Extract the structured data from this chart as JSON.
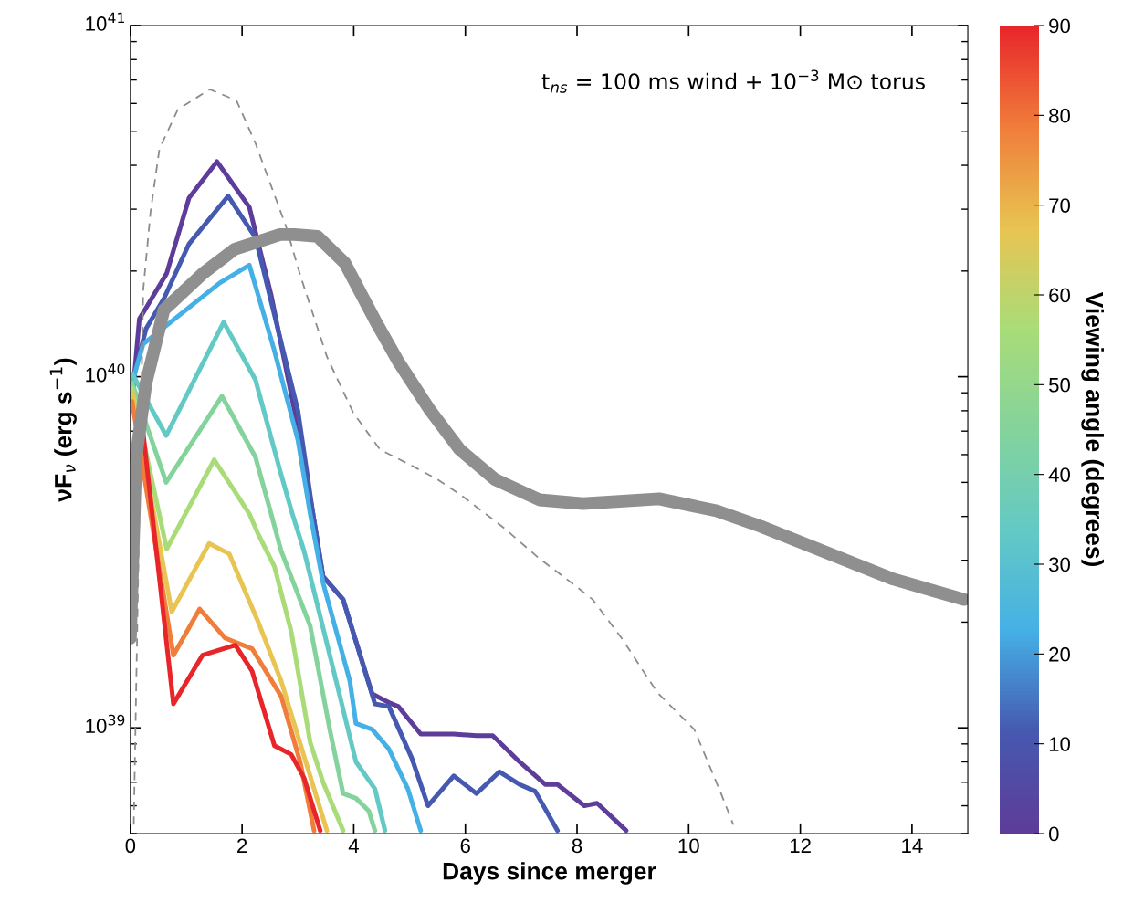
{
  "chart_data": {
    "type": "line",
    "xlabel": "Days since merger",
    "ylabel": "νF$_{ν}$ (erg s$^{−1}$)",
    "clabel": "Viewing angle (degrees)",
    "annotations": [
      "t$_{ns}$ = 100 ms wind + 10$^{−3}$ M⊙ torus"
    ],
    "log": "y",
    "grid": false,
    "legend": false,
    "line_style": "solid",
    "xlim": [
      0,
      15
    ],
    "xticks": [
      0,
      2,
      4,
      6,
      8,
      10,
      12,
      14
    ],
    "ylim": [
      5e+38,
      1e+41
    ],
    "yticks": [
      {
        "value": 1e+39,
        "label": "10$^{39}$"
      },
      {
        "value": 1e+40,
        "label": "10$^{40}$"
      },
      {
        "value": 1e+41,
        "label": "10$^{41}$"
      }
    ],
    "clim": [
      0,
      90
    ],
    "cticks": [
      0,
      10,
      20,
      30,
      40,
      50,
      60,
      70,
      80,
      90
    ],
    "series": [
      {
        "color": "#5e3c99",
        "x": [
          0.03,
          0.16,
          0.28,
          0.65,
          1.05,
          1.55,
          2.13,
          2.52,
          2.94,
          3.27,
          3.45,
          3.81,
          4.33,
          4.63,
          4.8,
          5.2,
          5.79,
          6.2,
          6.49,
          6.97,
          7.43,
          7.65,
          8.13,
          8.36,
          8.88
        ],
        "values": [
          8.5e+39,
          1.46e+40,
          1.57e+40,
          1.97e+40,
          3.23e+40,
          4.1e+40,
          3.04e+40,
          1.71e+40,
          8e+39,
          4.07e+39,
          2.7e+39,
          2.32e+39,
          1.25e+39,
          1.18e+39,
          1.15e+39,
          9.6e+38,
          9.6e+38,
          9.5e+38,
          9.5e+38,
          8e+38,
          6.9e+38,
          6.9e+38,
          6e+38,
          6.1e+38,
          5.1e+38
        ]
      },
      {
        "color": "#4659b0",
        "x": [
          0.03,
          0.28,
          0.6,
          1.05,
          1.75,
          2.24,
          3.0,
          3.27,
          3.45,
          3.81,
          4.38,
          4.63,
          5.04,
          5.33,
          5.79,
          6.2,
          6.61,
          6.97,
          7.25,
          7.65
        ],
        "values": [
          9.6e+39,
          1.37e+40,
          1.67e+40,
          2.39e+40,
          3.27e+40,
          2.49e+40,
          8e+39,
          4.07e+39,
          2.7e+39,
          2.32e+39,
          1.17e+39,
          1.15e+39,
          8.2e+38,
          6e+38,
          7.3e+38,
          6.5e+38,
          7.5e+38,
          6.9e+38,
          6.6e+38,
          5.1e+38
        ]
      },
      {
        "color": "#45b0e5",
        "x": [
          0.03,
          0.23,
          1.6,
          2.13,
          2.57,
          3.0,
          3.22,
          3.45,
          3.93,
          4.04,
          4.33,
          4.63,
          4.97,
          5.2
        ],
        "values": [
          9.6e+39,
          1.24e+40,
          1.85e+40,
          2.08e+40,
          1.2e+40,
          6.6e+39,
          4.07e+39,
          2.59e+39,
          1.36e+39,
          1.03e+39,
          9.9e+38,
          8.7e+38,
          6.7e+38,
          5.1e+38
        ]
      },
      {
        "color": "#63c9c4",
        "x": [
          0.03,
          0.64,
          1.67,
          2.24,
          2.68,
          2.9,
          3.11,
          3.7,
          4.04,
          4.38,
          4.56
        ],
        "values": [
          1.02e+40,
          6.8e+39,
          1.43e+40,
          9.8e+39,
          5.4e+39,
          4.07e+39,
          3.19e+39,
          1.33e+39,
          8e+38,
          6.7e+38,
          5.1e+38
        ]
      },
      {
        "color": "#84d39c",
        "x": [
          0.03,
          0.64,
          1.64,
          2.24,
          2.52,
          2.7,
          3.22,
          3.57,
          3.81,
          4.04,
          4.27,
          4.38
        ],
        "values": [
          9.6e+39,
          5e+39,
          8.8e+39,
          5.9e+39,
          4.07e+39,
          3.19e+39,
          1.95e+39,
          9.9e+38,
          6.5e+38,
          6.3e+38,
          5.8e+38,
          5.1e+38
        ]
      },
      {
        "color": "#a9dc78",
        "x": [
          0.03,
          0.65,
          1.5,
          2.13,
          2.29,
          2.58,
          2.88,
          3.22,
          3.45,
          3.81
        ],
        "values": [
          9.3e+39,
          3.23e+39,
          5.8e+39,
          4.07e+39,
          3.56e+39,
          2.88e+39,
          1.88e+39,
          9.1e+38,
          7e+38,
          5.1e+38
        ]
      },
      {
        "color": "#e8c452",
        "x": [
          0.03,
          0.74,
          1.41,
          1.77,
          2.29,
          2.7,
          3.11,
          3.52
        ],
        "values": [
          9e+39,
          2.14e+39,
          3.35e+39,
          3.13e+39,
          2e+39,
          1.36e+39,
          8.3e+38,
          5.1e+38
        ]
      },
      {
        "color": "#f07d3a",
        "x": [
          0.03,
          0.77,
          1.24,
          1.7,
          2.18,
          2.7,
          3.04,
          3.29
        ],
        "values": [
          8.5e+39,
          1.61e+39,
          2.18e+39,
          1.8e+39,
          1.68e+39,
          1.23e+39,
          8e+38,
          5.1e+38
        ]
      },
      {
        "color": "#e8262a",
        "x": [
          0.0,
          0.2,
          0.77,
          1.29,
          1.88,
          2.18,
          2.58,
          2.88,
          3.11,
          3.4
        ],
        "values": [
          5.9e+39,
          7.6e+39,
          1.17e+39,
          1.61e+39,
          1.72e+39,
          1.45e+39,
          8.9e+38,
          8.4e+38,
          7.2e+38,
          5.1e+38
        ]
      },
      {
        "color": "#8c8c8c",
        "line_style": "dashed",
        "x": [
          0.06,
          0.23,
          0.36,
          0.52,
          0.85,
          1.42,
          1.9,
          2.24,
          2.78,
          3.04,
          3.52,
          3.99,
          4.47,
          5.02,
          5.5,
          5.97,
          6.69,
          7.33,
          7.97,
          8.28,
          8.8,
          9.44,
          10.1,
          10.58,
          10.8
        ],
        "values": [
          5.3e+38,
          1.77e+40,
          2.94e+40,
          4.46e+40,
          5.77e+40,
          6.58e+40,
          6.12e+40,
          4.62e+40,
          2.7e+40,
          1.95e+40,
          1.14e+40,
          7.9e+39,
          6.2e+39,
          5.6e+39,
          5.1e+39,
          4.54e+39,
          3.71e+39,
          3.03e+39,
          2.54e+39,
          2.32e+39,
          1.8e+39,
          1.26e+39,
          9.9e+38,
          6.5e+38,
          5.3e+38
        ]
      },
      {
        "color": "#8f8f8f",
        "x": [
          0,
          0.1,
          0.28,
          0.6,
          1.3,
          1.87,
          2.68,
          2.94,
          3.35,
          3.84,
          4.38,
          4.79,
          5.35,
          5.9,
          6.53,
          7.33,
          8.11,
          9.47,
          10.5,
          11.29,
          12.48,
          13.67,
          14.93
        ],
        "values": [
          1.8e+39,
          5.9e+39,
          9.6e+39,
          1.55e+40,
          1.97e+40,
          2.31e+40,
          2.54e+40,
          2.54e+40,
          2.51e+40,
          2.11e+40,
          1.45e+40,
          1.11e+40,
          8.1e+39,
          6.2e+39,
          5.1e+39,
          4.46e+39,
          4.35e+39,
          4.49e+39,
          4.15e+39,
          3.75e+39,
          3.15e+39,
          2.65e+39,
          2.32e+39
        ]
      }
    ]
  }
}
